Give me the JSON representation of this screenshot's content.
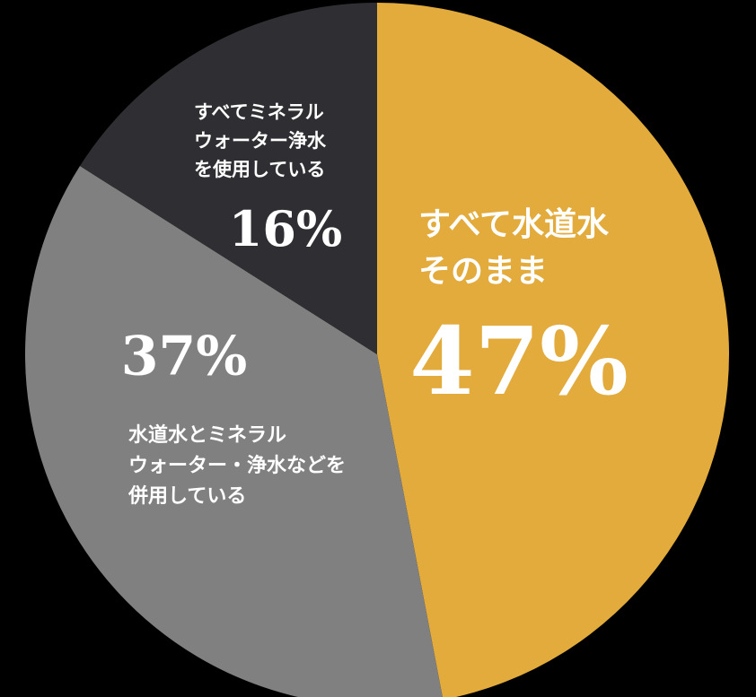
{
  "chart_data": {
    "type": "pie",
    "categories": [
      "すべて水道水\nそのまま",
      "水道水とミネラル\nウォーター・浄水などを\n併用している",
      "すべてミネラル\nウォーター浄水\nを使用している"
    ],
    "values": [
      47,
      37,
      16
    ],
    "value_labels": [
      "47%",
      "37%",
      "16%"
    ],
    "colors": [
      "#e2ab3b",
      "#808080",
      "#2e2e33"
    ]
  }
}
